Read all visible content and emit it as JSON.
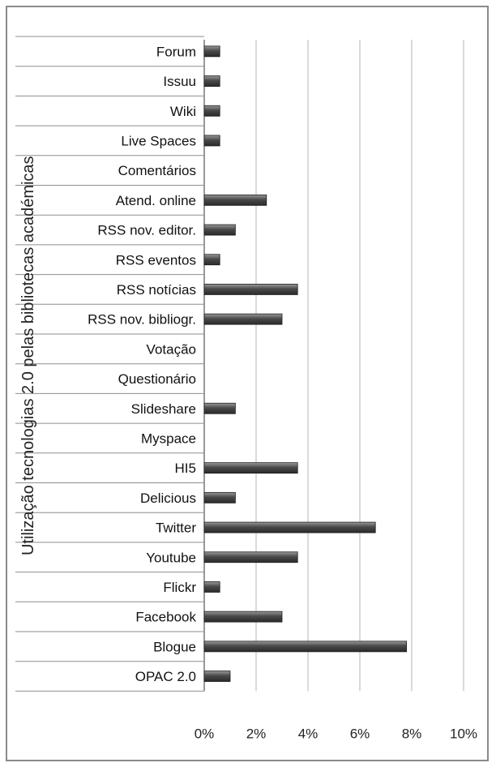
{
  "chart_data": {
    "type": "bar",
    "orientation": "horizontal",
    "ylabel": "Utilização tecnologias 2.0 pelas bibliotecas académicas",
    "xlabel": "",
    "xlim": [
      0,
      10
    ],
    "xticks": [
      0,
      2,
      4,
      6,
      8,
      10
    ],
    "xtick_labels": [
      "0%",
      "2%",
      "4%",
      "6%",
      "8%",
      "10%"
    ],
    "grid": "vertical",
    "bar_color": "#555555",
    "categories": [
      "Forum",
      "Issuu",
      "Wiki",
      "Live Spaces",
      "Comentários",
      "Atend. online",
      "RSS nov. editor.",
      "RSS eventos",
      "RSS notícias",
      "RSS nov. bibliogr.",
      "Votação",
      "Questionário",
      "Slideshare",
      "Myspace",
      "HI5",
      "Delicious",
      "Twitter",
      "Youtube",
      "Flickr",
      "Facebook",
      "Blogue",
      "OPAC 2.0"
    ],
    "values": [
      0.6,
      0.6,
      0.6,
      0.6,
      0,
      2.4,
      1.2,
      0.6,
      3.6,
      3.0,
      0,
      0,
      1.2,
      0,
      3.6,
      1.2,
      6.6,
      3.6,
      0.6,
      3.0,
      7.8,
      1.0
    ]
  }
}
